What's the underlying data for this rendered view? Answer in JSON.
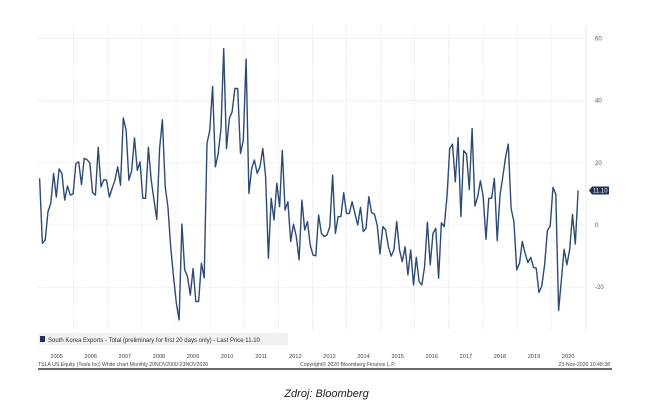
{
  "chart_data": {
    "type": "line",
    "title": "",
    "legend": "South Korea Exports - Total (preliminary for first 20 days only) - Last Price 11.10",
    "legend_placement": "bottom-left",
    "last_price_label": "11.10",
    "xlabel": "",
    "ylabel": "",
    "x_start": "2005-01",
    "x_end": "2020-10",
    "x_ticks": [
      "2005",
      "2006",
      "2007",
      "2008",
      "2009",
      "2010",
      "2011",
      "2012",
      "2013",
      "2014",
      "2015",
      "2016",
      "2017",
      "2018",
      "2019",
      "2020"
    ],
    "y_ticks": [
      60,
      40,
      20,
      0,
      -20
    ],
    "ylim": [
      -32,
      64
    ],
    "grid": true,
    "line_color": "#2c4a73",
    "series": [
      {
        "name": "South Korea Exports - Total",
        "values": [
          15,
          -5.9,
          -4.8,
          4.3,
          7,
          16.6,
          9,
          18,
          16.6,
          8,
          12.5,
          9.6,
          10,
          19.8,
          20.3,
          13,
          21.4,
          21,
          20,
          10.4,
          9.6,
          25,
          12.3,
          14.6,
          14.4,
          9,
          11.8,
          14.4,
          18.7,
          12.8,
          34.4,
          30.5,
          14.4,
          17.6,
          28,
          17.6,
          20.3,
          8.6,
          8.6,
          25,
          14.4,
          8,
          1.8,
          24.6,
          33.9,
          12.3,
          5.9,
          -7,
          -16.6,
          -25,
          -30.5,
          0.3,
          -14.4,
          -16.6,
          -22.5,
          -14,
          -24.6,
          -24.6,
          -12.3,
          -17,
          26.2,
          30.5,
          44.6,
          18.7,
          23,
          31,
          56.7,
          24.6,
          34.2,
          36.4,
          43.9,
          43.9,
          23,
          27.3,
          53.3,
          10.2,
          18.2,
          20.9,
          16.6,
          18.7,
          24.6,
          15.5,
          -10.7,
          8.6,
          1.6,
          13.4,
          5.9,
          24,
          4.8,
          7.5,
          -5.3,
          0.3,
          -3.7,
          -11.2,
          8,
          -1.6,
          1.1,
          -6.4,
          -9.6,
          -9.9,
          3.2,
          -2.7,
          -3.7,
          -3.2,
          -0.5,
          16,
          -2.7,
          2.7,
          2.7,
          10.4,
          3.7,
          3.7,
          7.5,
          3.7,
          0,
          5.7,
          -2.1,
          -1.1,
          9.1,
          4,
          3.5,
          0,
          -9.3,
          -0.5,
          -1.6,
          -7,
          -10,
          -8,
          1.1,
          -8,
          -11.8,
          -7,
          -16,
          -8,
          -19.3,
          -10.4,
          -18.2,
          -19.3,
          -13.4,
          0.9,
          -12.8,
          -2.7,
          -1.1,
          -17.1,
          0.7,
          -0.5,
          9.1,
          24.6,
          26,
          13.9,
          28.1,
          2.7,
          23.9,
          22.8,
          11.4,
          31,
          6.1,
          9.1,
          14.2,
          9.1,
          -4.6,
          8.6,
          8.6,
          15,
          -5,
          9.6,
          15.5,
          21.9,
          26,
          5.3,
          1.1,
          -14.4,
          -12.3,
          -5.3,
          -9.1,
          -12.1,
          -10.4,
          -13.6,
          -13.9,
          -21.7,
          -19.6,
          -12.8,
          -1.8,
          -0.3,
          12.1,
          9.9,
          -27.5,
          -17.6,
          -7.8,
          -12.8,
          -7.8,
          3.4,
          -6.1,
          11.1
        ]
      }
    ]
  },
  "footer": {
    "left": "TSLA US Equity (Tesla Inc) White chart  Monthly 20NOV2000-23NOV2020",
    "center": "Copyright© 2020 Bloomberg Finance L.P.",
    "right": "23-Nov-2020 10:48:38"
  },
  "caption": "Zdroj: Bloomberg"
}
